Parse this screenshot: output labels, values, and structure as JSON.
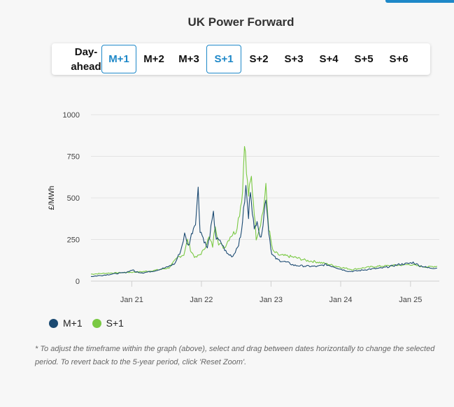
{
  "page": {
    "title": "UK Power Forward"
  },
  "tabs": [
    {
      "label_line1": "Day-",
      "label_line2": "ahead",
      "active": false
    },
    {
      "label": "M+1",
      "active": true
    },
    {
      "label": "M+2",
      "active": false
    },
    {
      "label": "M+3",
      "active": false
    },
    {
      "label": "S+1",
      "active": true
    },
    {
      "label": "S+2",
      "active": false
    },
    {
      "label": "S+3",
      "active": false
    },
    {
      "label": "S+4",
      "active": false
    },
    {
      "label": "S+5",
      "active": false
    },
    {
      "label": "S+6",
      "active": false
    }
  ],
  "footnote": "* To adjust the timeframe within the graph (above), select and drag between dates horizontally to change the selected period. To revert back to the 5-year period, click 'Reset Zoom'.",
  "colors": {
    "accent": "#1e88c8",
    "m1": "#1b4a72",
    "s1": "#7ac943",
    "grid": "#e3e3e3"
  },
  "chart_data": {
    "type": "line",
    "title": "UK Power Forward",
    "ylabel": "£/MWh",
    "xlabel": "",
    "ylim": [
      0,
      1000
    ],
    "yticks": [
      0,
      250,
      500,
      750,
      1000
    ],
    "xlim": [
      "2020-06-01",
      "2025-06-01"
    ],
    "xticks": [
      {
        "date": "2021-01-01",
        "label": "Jan 21"
      },
      {
        "date": "2022-01-01",
        "label": "Jan 22"
      },
      {
        "date": "2023-01-01",
        "label": "Jan 23"
      },
      {
        "date": "2024-01-01",
        "label": "Jan 24"
      },
      {
        "date": "2025-01-01",
        "label": "Jan 25"
      }
    ],
    "grid": true,
    "legend_position": "bottom-left",
    "series": [
      {
        "name": "M+1",
        "color": "#1b4a72",
        "points": [
          [
            "2020-06-01",
            28
          ],
          [
            "2020-08-01",
            35
          ],
          [
            "2020-10-01",
            44
          ],
          [
            "2020-12-01",
            52
          ],
          [
            "2021-01-05",
            68
          ],
          [
            "2021-01-20",
            56
          ],
          [
            "2021-03-01",
            50
          ],
          [
            "2021-05-01",
            62
          ],
          [
            "2021-07-01",
            82
          ],
          [
            "2021-08-15",
            105
          ],
          [
            "2021-09-15",
            185
          ],
          [
            "2021-10-05",
            280
          ],
          [
            "2021-10-25",
            210
          ],
          [
            "2021-11-15",
            300
          ],
          [
            "2021-12-01",
            360
          ],
          [
            "2021-12-15",
            550
          ],
          [
            "2021-12-25",
            310
          ],
          [
            "2022-01-10",
            260
          ],
          [
            "2022-02-01",
            195
          ],
          [
            "2022-03-05",
            400
          ],
          [
            "2022-03-20",
            255
          ],
          [
            "2022-04-15",
            230
          ],
          [
            "2022-05-15",
            165
          ],
          [
            "2022-06-15",
            150
          ],
          [
            "2022-07-10",
            210
          ],
          [
            "2022-07-25",
            260
          ],
          [
            "2022-08-10",
            420
          ],
          [
            "2022-08-22",
            560
          ],
          [
            "2022-09-05",
            380
          ],
          [
            "2022-09-15",
            560
          ],
          [
            "2022-09-25",
            430
          ],
          [
            "2022-10-05",
            300
          ],
          [
            "2022-10-20",
            380
          ],
          [
            "2022-11-05",
            250
          ],
          [
            "2022-11-20",
            345
          ],
          [
            "2022-12-05",
            510
          ],
          [
            "2022-12-20",
            300
          ],
          [
            "2023-01-05",
            160
          ],
          [
            "2023-02-01",
            130
          ],
          [
            "2023-03-01",
            120
          ],
          [
            "2023-04-01",
            110
          ],
          [
            "2023-05-01",
            95
          ],
          [
            "2023-07-01",
            90
          ],
          [
            "2023-09-01",
            88
          ],
          [
            "2023-10-15",
            100
          ],
          [
            "2023-12-01",
            85
          ],
          [
            "2024-01-01",
            72
          ],
          [
            "2024-02-15",
            58
          ],
          [
            "2024-04-01",
            62
          ],
          [
            "2024-06-01",
            72
          ],
          [
            "2024-08-01",
            78
          ],
          [
            "2024-09-15",
            88
          ],
          [
            "2024-11-01",
            100
          ],
          [
            "2024-12-15",
            105
          ],
          [
            "2025-01-15",
            112
          ],
          [
            "2025-02-15",
            95
          ],
          [
            "2025-04-01",
            80
          ],
          [
            "2025-05-20",
            78
          ]
        ]
      },
      {
        "name": "S+1",
        "color": "#7ac943",
        "points": [
          [
            "2020-06-01",
            42
          ],
          [
            "2020-09-01",
            48
          ],
          [
            "2020-12-01",
            52
          ],
          [
            "2021-02-01",
            55
          ],
          [
            "2021-04-01",
            60
          ],
          [
            "2021-06-01",
            70
          ],
          [
            "2021-07-15",
            80
          ],
          [
            "2021-09-01",
            145
          ],
          [
            "2021-10-01",
            160
          ],
          [
            "2021-10-20",
            245
          ],
          [
            "2021-11-10",
            175
          ],
          [
            "2021-12-01",
            140
          ],
          [
            "2021-12-20",
            155
          ],
          [
            "2022-01-10",
            180
          ],
          [
            "2022-02-10",
            260
          ],
          [
            "2022-03-01",
            210
          ],
          [
            "2022-03-15",
            340
          ],
          [
            "2022-04-01",
            230
          ],
          [
            "2022-05-01",
            200
          ],
          [
            "2022-06-01",
            270
          ],
          [
            "2022-07-01",
            300
          ],
          [
            "2022-07-20",
            410
          ],
          [
            "2022-08-05",
            540
          ],
          [
            "2022-08-15",
            860
          ],
          [
            "2022-08-25",
            650
          ],
          [
            "2022-09-05",
            520
          ],
          [
            "2022-09-20",
            620
          ],
          [
            "2022-10-05",
            420
          ],
          [
            "2022-10-15",
            260
          ],
          [
            "2022-11-01",
            320
          ],
          [
            "2022-11-20",
            420
          ],
          [
            "2022-12-05",
            560
          ],
          [
            "2022-12-20",
            320
          ],
          [
            "2023-01-10",
            180
          ],
          [
            "2023-02-15",
            155
          ],
          [
            "2023-04-01",
            150
          ],
          [
            "2023-05-15",
            140
          ],
          [
            "2023-07-01",
            125
          ],
          [
            "2023-09-01",
            115
          ],
          [
            "2023-10-15",
            105
          ],
          [
            "2023-12-01",
            92
          ],
          [
            "2024-01-15",
            80
          ],
          [
            "2024-03-01",
            70
          ],
          [
            "2024-05-01",
            80
          ],
          [
            "2024-07-01",
            88
          ],
          [
            "2024-09-01",
            92
          ],
          [
            "2024-11-01",
            96
          ],
          [
            "2025-01-01",
            100
          ],
          [
            "2025-02-15",
            90
          ],
          [
            "2025-04-01",
            85
          ],
          [
            "2025-05-20",
            90
          ]
        ]
      }
    ]
  }
}
